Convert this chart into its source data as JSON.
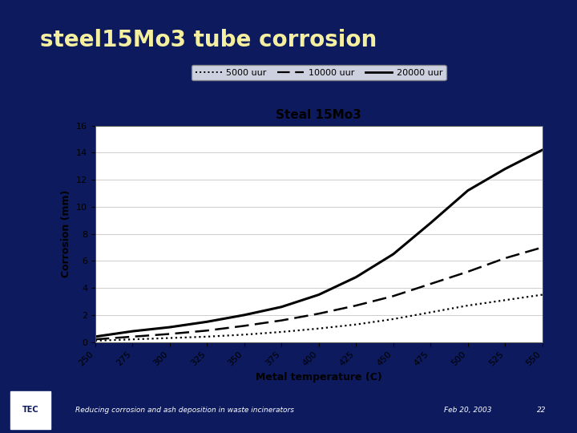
{
  "title": "steel15Mo3 tube corrosion",
  "chart_title": "Steal 15Mo3",
  "xlabel": "Metal temperature (C)",
  "ylabel": "Corrosion (mm)",
  "x_ticks": [
    250,
    275,
    300,
    325,
    350,
    375,
    400,
    425,
    450,
    475,
    500,
    525,
    550
  ],
  "ylim": [
    0,
    16
  ],
  "yticks": [
    0,
    2,
    4,
    6,
    8,
    10,
    12,
    14,
    16
  ],
  "xlim": [
    250,
    550
  ],
  "series": [
    {
      "label": "5000 uur",
      "linestyle": "dotted",
      "linewidth": 1.6,
      "color": "#000000",
      "x": [
        250,
        275,
        300,
        325,
        350,
        375,
        400,
        425,
        450,
        475,
        500,
        525,
        550
      ],
      "y": [
        0.1,
        0.2,
        0.3,
        0.4,
        0.55,
        0.75,
        1.0,
        1.3,
        1.7,
        2.2,
        2.7,
        3.1,
        3.5
      ]
    },
    {
      "label": "10000 uur",
      "linestyle": "dashed",
      "linewidth": 1.8,
      "color": "#000000",
      "x": [
        250,
        275,
        300,
        325,
        350,
        375,
        400,
        425,
        450,
        475,
        500,
        525,
        550
      ],
      "y": [
        0.2,
        0.4,
        0.6,
        0.85,
        1.2,
        1.6,
        2.1,
        2.7,
        3.4,
        4.3,
        5.2,
        6.2,
        7.0
      ]
    },
    {
      "label": "20000 uur",
      "linestyle": "solid",
      "linewidth": 2.2,
      "color": "#000000",
      "x": [
        250,
        275,
        300,
        325,
        350,
        375,
        400,
        425,
        450,
        475,
        500,
        525,
        550
      ],
      "y": [
        0.4,
        0.8,
        1.1,
        1.5,
        2.0,
        2.6,
        3.5,
        4.8,
        6.5,
        8.8,
        11.2,
        12.8,
        14.2
      ]
    }
  ],
  "slide_bg": "#0d1b5e",
  "chart_bg": "#ffffff",
  "title_color": "#f5f0a0",
  "footer_bg": "#1e35b8",
  "footer_text": "Reducing corrosion and ash deposition in waste incinerators",
  "footer_date": "Feb 20, 2003",
  "footer_page": "22",
  "footer_color": "#ffffff",
  "title_fontsize": 20,
  "chart_title_fontsize": 11,
  "axis_label_fontsize": 9,
  "tick_fontsize": 8,
  "legend_fontsize": 8
}
